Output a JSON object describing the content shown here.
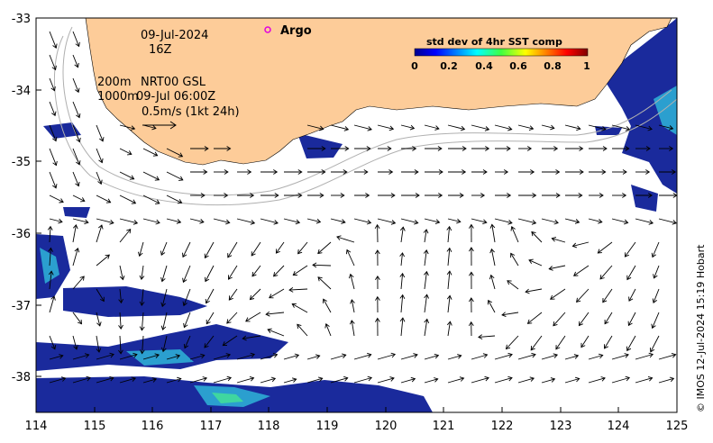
{
  "map": {
    "date": "09-Jul-2024",
    "time": "16Z",
    "depth_line1": "200m",
    "depth_line2": "1000m",
    "product_line1": "NRT00 GSL",
    "product_line2": "09-Jul 06:00Z",
    "scale_label": "0.5m/s (1kt 24h)",
    "argo_label": "Argo",
    "credit": "© IMOS 12-Jul-2024 15:19 Hobart",
    "x_ticks": [
      "114",
      "115",
      "116",
      "117",
      "118",
      "119",
      "120",
      "121",
      "122",
      "123",
      "124",
      "125"
    ],
    "y_ticks": [
      "-33",
      "-34",
      "-35",
      "-36",
      "-37",
      "-38"
    ]
  },
  "colorbar": {
    "title": "std dev of 4hr SST comp",
    "ticks": [
      "0",
      "0.2",
      "0.4",
      "0.6",
      "0.8",
      "1"
    ]
  },
  "colors": {
    "land": "#fdcc99",
    "ocean": "#ffffff",
    "sst_low": "#1a2a9c",
    "sst_mid": "#2b9fcf",
    "sst_high": "#3fd6a0",
    "argo_marker": "#e000e0",
    "contour": "#b0b0b0"
  }
}
